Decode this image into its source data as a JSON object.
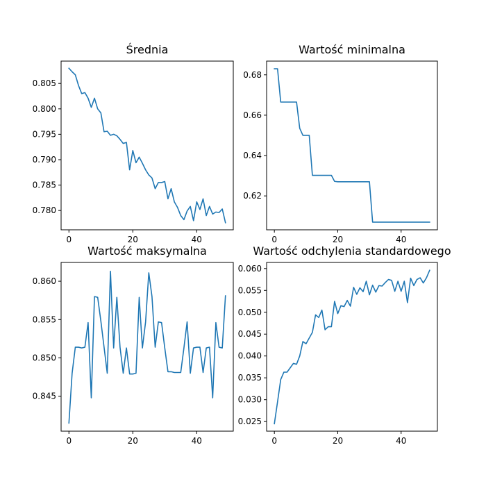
{
  "colors": {
    "line": "#1f77b4",
    "frame": "#000000",
    "background": "#ffffff"
  },
  "chart_data": [
    {
      "type": "line",
      "title": "Średnia",
      "xlim": [
        -2.45,
        51.45
      ],
      "ylim": [
        0.7762,
        0.8094
      ],
      "xticks": [
        0,
        20,
        40
      ],
      "xtick_labels": [
        "0",
        "20",
        "40"
      ],
      "yticks": [
        0.78,
        0.785,
        0.79,
        0.795,
        0.8,
        0.805
      ],
      "ytick_labels": [
        "0.780",
        "0.785",
        "0.790",
        "0.795",
        "0.800",
        "0.805"
      ],
      "series": [
        {
          "x": [
            0,
            1,
            2,
            3,
            4,
            5,
            6,
            7,
            8,
            9,
            10,
            11,
            12,
            13,
            14,
            15,
            16,
            17,
            18,
            19,
            20,
            21,
            22,
            23,
            24,
            25,
            26,
            27,
            28,
            29,
            30,
            31,
            32,
            33,
            34,
            35,
            36,
            37,
            38,
            39,
            40,
            41,
            42,
            43,
            44,
            45,
            46,
            47,
            48,
            49
          ],
          "y": [
            0.808,
            0.8073,
            0.8067,
            0.8046,
            0.803,
            0.8032,
            0.8021,
            0.8003,
            0.8021,
            0.8,
            0.7992,
            0.7955,
            0.7956,
            0.7948,
            0.795,
            0.7947,
            0.794,
            0.7932,
            0.7934,
            0.788,
            0.7918,
            0.7894,
            0.7905,
            0.7893,
            0.788,
            0.787,
            0.7864,
            0.7843,
            0.7855,
            0.7855,
            0.7857,
            0.7823,
            0.7843,
            0.7817,
            0.7806,
            0.779,
            0.7782,
            0.7799,
            0.7808,
            0.778,
            0.7817,
            0.7802,
            0.7823,
            0.779,
            0.7808,
            0.7793,
            0.7797,
            0.7796,
            0.7803,
            0.7776
          ]
        }
      ]
    },
    {
      "type": "line",
      "title": "Wartość minimalna",
      "xlim": [
        -2.45,
        51.45
      ],
      "ylim": [
        0.6032,
        0.6868
      ],
      "xticks": [
        0,
        20,
        40
      ],
      "xtick_labels": [
        "0",
        "20",
        "40"
      ],
      "yticks": [
        0.62,
        0.64,
        0.66,
        0.68
      ],
      "ytick_labels": [
        "0.62",
        "0.64",
        "0.66",
        "0.68"
      ],
      "series": [
        {
          "x": [
            0,
            1,
            2,
            3,
            4,
            5,
            6,
            7,
            8,
            9,
            10,
            11,
            12,
            13,
            14,
            15,
            16,
            17,
            18,
            19,
            20,
            21,
            22,
            23,
            24,
            25,
            26,
            27,
            28,
            29,
            30,
            31,
            32,
            33,
            34,
            35,
            36,
            37,
            38,
            39,
            40,
            41,
            42,
            43,
            44,
            45,
            46,
            47,
            48,
            49
          ],
          "y": [
            0.683,
            0.683,
            0.6665,
            0.6665,
            0.6665,
            0.6665,
            0.6665,
            0.6665,
            0.6535,
            0.65,
            0.65,
            0.65,
            0.6302,
            0.6302,
            0.6302,
            0.6302,
            0.6302,
            0.6302,
            0.6302,
            0.6272,
            0.627,
            0.627,
            0.627,
            0.627,
            0.627,
            0.627,
            0.627,
            0.627,
            0.627,
            0.627,
            0.627,
            0.607,
            0.607,
            0.607,
            0.607,
            0.607,
            0.607,
            0.607,
            0.607,
            0.607,
            0.607,
            0.607,
            0.607,
            0.607,
            0.607,
            0.607,
            0.607,
            0.607,
            0.607,
            0.607
          ]
        }
      ]
    },
    {
      "type": "line",
      "title": "Wartość maksymalna",
      "xlim": [
        -2.45,
        51.45
      ],
      "ylim": [
        0.84045,
        0.86245
      ],
      "xticks": [
        0,
        20,
        40
      ],
      "xtick_labels": [
        "0",
        "20",
        "40"
      ],
      "yticks": [
        0.845,
        0.85,
        0.855,
        0.86
      ],
      "ytick_labels": [
        "0.845",
        "0.850",
        "0.855",
        "0.860"
      ],
      "series": [
        {
          "x": [
            0,
            1,
            2,
            3,
            4,
            5,
            6,
            7,
            8,
            9,
            10,
            11,
            12,
            13,
            14,
            15,
            16,
            17,
            18,
            19,
            20,
            21,
            22,
            23,
            24,
            25,
            26,
            27,
            28,
            29,
            30,
            31,
            32,
            33,
            34,
            35,
            36,
            37,
            38,
            39,
            40,
            41,
            42,
            43,
            44,
            45,
            46,
            47,
            48,
            49
          ],
          "y": [
            0.8415,
            0.848,
            0.8514,
            0.8514,
            0.8513,
            0.8514,
            0.8546,
            0.8448,
            0.858,
            0.8579,
            0.8548,
            0.8514,
            0.848,
            0.8613,
            0.8513,
            0.8579,
            0.8514,
            0.848,
            0.8513,
            0.8479,
            0.8479,
            0.848,
            0.8579,
            0.8513,
            0.8547,
            0.8611,
            0.858,
            0.8514,
            0.8547,
            0.8546,
            0.8513,
            0.8482,
            0.8482,
            0.8481,
            0.8481,
            0.8481,
            0.8513,
            0.8547,
            0.848,
            0.8513,
            0.8514,
            0.8514,
            0.8481,
            0.8513,
            0.8514,
            0.8448,
            0.8546,
            0.8514,
            0.8513,
            0.8581
          ]
        }
      ]
    },
    {
      "type": "line",
      "title": "Wartość odchylenia standardowego",
      "xlim": [
        -2.45,
        51.45
      ],
      "ylim": [
        0.0228,
        0.0614
      ],
      "xticks": [
        0,
        20,
        40
      ],
      "xtick_labels": [
        "0",
        "20",
        "40"
      ],
      "yticks": [
        0.025,
        0.03,
        0.035,
        0.04,
        0.045,
        0.05,
        0.055,
        0.06
      ],
      "ytick_labels": [
        "0.025",
        "0.030",
        "0.035",
        "0.040",
        "0.045",
        "0.050",
        "0.055",
        "0.060"
      ],
      "series": [
        {
          "x": [
            0,
            1,
            2,
            3,
            4,
            5,
            6,
            7,
            8,
            9,
            10,
            11,
            12,
            13,
            14,
            15,
            16,
            17,
            18,
            19,
            20,
            21,
            22,
            23,
            24,
            25,
            26,
            27,
            28,
            29,
            30,
            31,
            32,
            33,
            34,
            35,
            36,
            37,
            38,
            39,
            40,
            41,
            42,
            43,
            44,
            45,
            46,
            47,
            48,
            49
          ],
          "y": [
            0.0245,
            0.0295,
            0.0346,
            0.0363,
            0.0363,
            0.0373,
            0.0383,
            0.0381,
            0.04,
            0.0433,
            0.0428,
            0.0441,
            0.0454,
            0.0494,
            0.0488,
            0.0505,
            0.046,
            0.0467,
            0.0467,
            0.0525,
            0.0497,
            0.0515,
            0.0513,
            0.0527,
            0.0514,
            0.0557,
            0.0541,
            0.0556,
            0.0547,
            0.0571,
            0.054,
            0.0562,
            0.0546,
            0.0561,
            0.056,
            0.0568,
            0.0575,
            0.0573,
            0.0548,
            0.0571,
            0.0548,
            0.0571,
            0.0522,
            0.0578,
            0.0561,
            0.0575,
            0.0579,
            0.0567,
            0.0579,
            0.0596
          ]
        }
      ]
    }
  ]
}
